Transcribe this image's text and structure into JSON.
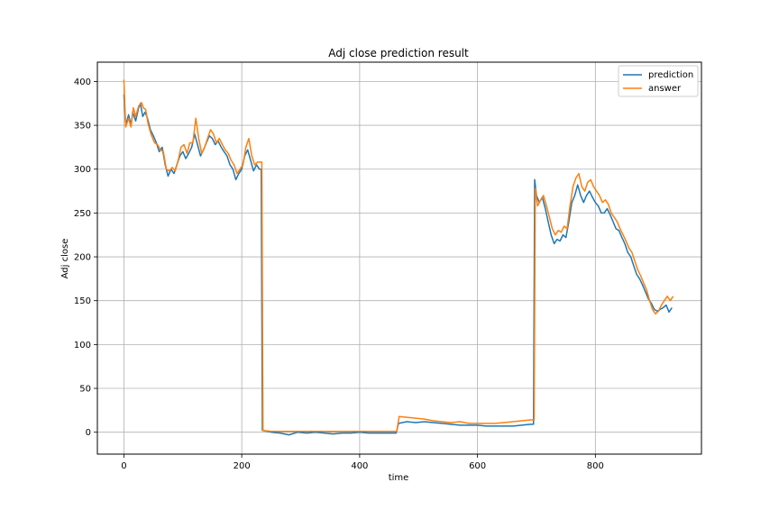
{
  "chart_data": {
    "type": "line",
    "title": "Adj close prediction result",
    "xlabel": "time",
    "ylabel": "Adj close",
    "xlim": [
      -45,
      980
    ],
    "ylim": [
      -25,
      422
    ],
    "x_ticks": [
      0,
      200,
      400,
      600,
      800
    ],
    "y_ticks": [
      0,
      50,
      100,
      150,
      200,
      250,
      300,
      350,
      400
    ],
    "grid": true,
    "legend_position": "upper right",
    "series": [
      {
        "name": "prediction",
        "color": "#1f77b4",
        "points": [
          [
            0,
            385
          ],
          [
            3,
            350
          ],
          [
            8,
            362
          ],
          [
            12,
            350
          ],
          [
            15,
            365
          ],
          [
            20,
            355
          ],
          [
            25,
            370
          ],
          [
            28,
            375
          ],
          [
            32,
            360
          ],
          [
            36,
            365
          ],
          [
            40,
            358
          ],
          [
            45,
            345
          ],
          [
            50,
            338
          ],
          [
            55,
            330
          ],
          [
            60,
            320
          ],
          [
            65,
            325
          ],
          [
            70,
            305
          ],
          [
            75,
            292
          ],
          [
            80,
            300
          ],
          [
            85,
            295
          ],
          [
            90,
            305
          ],
          [
            95,
            315
          ],
          [
            100,
            320
          ],
          [
            105,
            312
          ],
          [
            110,
            318
          ],
          [
            115,
            325
          ],
          [
            120,
            340
          ],
          [
            125,
            328
          ],
          [
            130,
            315
          ],
          [
            135,
            322
          ],
          [
            140,
            330
          ],
          [
            145,
            338
          ],
          [
            150,
            335
          ],
          [
            155,
            328
          ],
          [
            160,
            332
          ],
          [
            165,
            325
          ],
          [
            170,
            320
          ],
          [
            175,
            315
          ],
          [
            180,
            305
          ],
          [
            185,
            300
          ],
          [
            190,
            288
          ],
          [
            195,
            295
          ],
          [
            200,
            300
          ],
          [
            205,
            315
          ],
          [
            210,
            322
          ],
          [
            215,
            310
          ],
          [
            220,
            298
          ],
          [
            225,
            305
          ],
          [
            230,
            300
          ],
          [
            233,
            300
          ],
          [
            235,
            2
          ],
          [
            250,
            0
          ],
          [
            265,
            -1
          ],
          [
            280,
            -3
          ],
          [
            295,
            0
          ],
          [
            310,
            -1
          ],
          [
            325,
            0
          ],
          [
            340,
            -1
          ],
          [
            355,
            -2
          ],
          [
            370,
            -1
          ],
          [
            385,
            -1
          ],
          [
            400,
            0
          ],
          [
            415,
            -1
          ],
          [
            430,
            -1
          ],
          [
            445,
            -1
          ],
          [
            462,
            -1
          ],
          [
            466,
            10
          ],
          [
            480,
            12
          ],
          [
            495,
            11
          ],
          [
            510,
            12
          ],
          [
            525,
            11
          ],
          [
            540,
            10
          ],
          [
            555,
            9
          ],
          [
            570,
            8
          ],
          [
            585,
            8
          ],
          [
            600,
            8
          ],
          [
            615,
            7
          ],
          [
            630,
            7
          ],
          [
            645,
            7
          ],
          [
            660,
            7
          ],
          [
            675,
            8
          ],
          [
            690,
            9
          ],
          [
            695,
            9
          ],
          [
            697,
            288
          ],
          [
            700,
            270
          ],
          [
            705,
            262
          ],
          [
            710,
            268
          ],
          [
            715,
            255
          ],
          [
            720,
            240
          ],
          [
            725,
            225
          ],
          [
            730,
            215
          ],
          [
            735,
            220
          ],
          [
            740,
            218
          ],
          [
            745,
            225
          ],
          [
            750,
            222
          ],
          [
            755,
            240
          ],
          [
            760,
            262
          ],
          [
            765,
            270
          ],
          [
            770,
            282
          ],
          [
            775,
            270
          ],
          [
            780,
            262
          ],
          [
            785,
            270
          ],
          [
            790,
            275
          ],
          [
            795,
            268
          ],
          [
            800,
            262
          ],
          [
            805,
            258
          ],
          [
            810,
            250
          ],
          [
            815,
            250
          ],
          [
            820,
            255
          ],
          [
            825,
            248
          ],
          [
            830,
            240
          ],
          [
            835,
            232
          ],
          [
            840,
            230
          ],
          [
            845,
            222
          ],
          [
            850,
            215
          ],
          [
            855,
            205
          ],
          [
            860,
            200
          ],
          [
            865,
            190
          ],
          [
            870,
            180
          ],
          [
            875,
            175
          ],
          [
            880,
            168
          ],
          [
            885,
            160
          ],
          [
            890,
            152
          ],
          [
            895,
            147
          ],
          [
            900,
            140
          ],
          [
            905,
            138
          ],
          [
            910,
            140
          ],
          [
            915,
            142
          ],
          [
            920,
            145
          ],
          [
            925,
            137
          ],
          [
            930,
            142
          ]
        ]
      },
      {
        "name": "answer",
        "color": "#ff7f0e",
        "points": [
          [
            0,
            402
          ],
          [
            3,
            348
          ],
          [
            8,
            358
          ],
          [
            12,
            348
          ],
          [
            16,
            370
          ],
          [
            20,
            360
          ],
          [
            25,
            372
          ],
          [
            30,
            376
          ],
          [
            33,
            370
          ],
          [
            37,
            368
          ],
          [
            41,
            352
          ],
          [
            46,
            340
          ],
          [
            52,
            330
          ],
          [
            57,
            328
          ],
          [
            62,
            322
          ],
          [
            67,
            320
          ],
          [
            72,
            300
          ],
          [
            77,
            298
          ],
          [
            82,
            302
          ],
          [
            87,
            298
          ],
          [
            92,
            310
          ],
          [
            97,
            325
          ],
          [
            102,
            328
          ],
          [
            107,
            318
          ],
          [
            112,
            330
          ],
          [
            117,
            330
          ],
          [
            122,
            358
          ],
          [
            127,
            335
          ],
          [
            132,
            318
          ],
          [
            137,
            325
          ],
          [
            142,
            335
          ],
          [
            147,
            345
          ],
          [
            152,
            340
          ],
          [
            157,
            330
          ],
          [
            162,
            335
          ],
          [
            167,
            328
          ],
          [
            172,
            322
          ],
          [
            177,
            318
          ],
          [
            182,
            310
          ],
          [
            187,
            305
          ],
          [
            192,
            295
          ],
          [
            197,
            300
          ],
          [
            202,
            305
          ],
          [
            207,
            325
          ],
          [
            212,
            335
          ],
          [
            217,
            315
          ],
          [
            222,
            305
          ],
          [
            227,
            308
          ],
          [
            232,
            308
          ],
          [
            234,
            308
          ],
          [
            236,
            2
          ],
          [
            250,
            1
          ],
          [
            265,
            1
          ],
          [
            280,
            1
          ],
          [
            295,
            1
          ],
          [
            310,
            1
          ],
          [
            325,
            1
          ],
          [
            340,
            1
          ],
          [
            355,
            1
          ],
          [
            370,
            1
          ],
          [
            385,
            1
          ],
          [
            400,
            1
          ],
          [
            415,
            1
          ],
          [
            430,
            1
          ],
          [
            445,
            1
          ],
          [
            463,
            1
          ],
          [
            467,
            18
          ],
          [
            480,
            17
          ],
          [
            495,
            16
          ],
          [
            510,
            15
          ],
          [
            525,
            13
          ],
          [
            540,
            12
          ],
          [
            555,
            11
          ],
          [
            570,
            12
          ],
          [
            585,
            10
          ],
          [
            600,
            10
          ],
          [
            615,
            10
          ],
          [
            630,
            10
          ],
          [
            645,
            11
          ],
          [
            660,
            12
          ],
          [
            675,
            13
          ],
          [
            690,
            14
          ],
          [
            696,
            14
          ],
          [
            698,
            278
          ],
          [
            702,
            258
          ],
          [
            707,
            265
          ],
          [
            712,
            270
          ],
          [
            717,
            258
          ],
          [
            722,
            245
          ],
          [
            727,
            232
          ],
          [
            732,
            225
          ],
          [
            737,
            230
          ],
          [
            742,
            228
          ],
          [
            747,
            235
          ],
          [
            752,
            232
          ],
          [
            757,
            258
          ],
          [
            762,
            280
          ],
          [
            767,
            290
          ],
          [
            772,
            295
          ],
          [
            777,
            280
          ],
          [
            782,
            275
          ],
          [
            787,
            285
          ],
          [
            792,
            288
          ],
          [
            797,
            280
          ],
          [
            802,
            275
          ],
          [
            807,
            270
          ],
          [
            812,
            262
          ],
          [
            817,
            265
          ],
          [
            822,
            260
          ],
          [
            827,
            250
          ],
          [
            832,
            245
          ],
          [
            837,
            240
          ],
          [
            842,
            232
          ],
          [
            847,
            225
          ],
          [
            852,
            218
          ],
          [
            857,
            210
          ],
          [
            862,
            205
          ],
          [
            867,
            195
          ],
          [
            872,
            185
          ],
          [
            877,
            178
          ],
          [
            882,
            170
          ],
          [
            887,
            162
          ],
          [
            892,
            150
          ],
          [
            897,
            140
          ],
          [
            902,
            135
          ],
          [
            907,
            138
          ],
          [
            912,
            145
          ],
          [
            917,
            150
          ],
          [
            922,
            155
          ],
          [
            927,
            150
          ],
          [
            932,
            155
          ]
        ]
      }
    ]
  }
}
